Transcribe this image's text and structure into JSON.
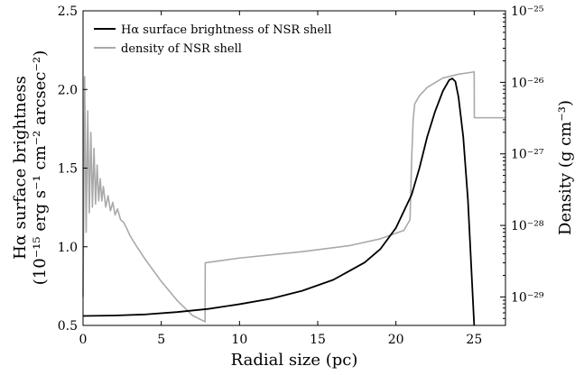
{
  "chart_data": {
    "type": "line",
    "xlabel": "Radial size (pc)",
    "xlim": [
      0,
      27
    ],
    "x_ticks": [
      0,
      5,
      10,
      15,
      20,
      25
    ],
    "x_tick_labels": [
      "0",
      "5",
      "10",
      "15",
      "20",
      "25"
    ],
    "y_left": {
      "label_line1": "Hα surface brightness",
      "label_line2": "(10⁻¹⁵ erg s⁻¹ cm⁻² arcsec⁻²)",
      "lim": [
        0.5,
        2.5
      ],
      "ticks": [
        0.5,
        1.0,
        1.5,
        2.0,
        2.5
      ],
      "tick_labels": [
        "0.5",
        "1.0",
        "1.5",
        "2.0",
        "2.5"
      ]
    },
    "y_right": {
      "label": "Density (g cm⁻³)",
      "scale": "log",
      "lim": [
        4e-30,
        1e-25
      ],
      "ticks": [
        1e-29,
        1e-28,
        1e-27,
        1e-26,
        1e-25
      ],
      "tick_labels": [
        "10⁻²⁹",
        "10⁻²⁸",
        "10⁻²⁷",
        "10⁻²⁶",
        "10⁻²⁵"
      ]
    },
    "grid": false,
    "legend_position": "top-left",
    "series": [
      {
        "name": "Hα surface brightness of NSR shell",
        "axis": "left",
        "color": "#000000",
        "x": [
          0.0,
          2.0,
          4.0,
          6.0,
          8.0,
          10.0,
          12.0,
          14.0,
          16.0,
          18.0,
          19.0,
          20.0,
          21.0,
          21.5,
          22.0,
          22.5,
          23.0,
          23.4,
          23.6,
          23.8,
          24.0,
          24.3,
          24.6,
          24.9,
          25.0
        ],
        "values": [
          0.56,
          0.563,
          0.57,
          0.585,
          0.605,
          0.635,
          0.67,
          0.72,
          0.79,
          0.9,
          0.985,
          1.12,
          1.33,
          1.5,
          1.7,
          1.86,
          1.99,
          2.06,
          2.07,
          2.05,
          1.95,
          1.7,
          1.3,
          0.7,
          0.5
        ]
      },
      {
        "name": "density of NSR shell",
        "axis": "right",
        "color": "#a9a9a9",
        "x": [
          0.0,
          0.1,
          0.2,
          0.3,
          0.4,
          0.5,
          0.6,
          0.7,
          0.8,
          0.9,
          1.0,
          1.1,
          1.2,
          1.3,
          1.45,
          1.6,
          1.75,
          1.9,
          2.05,
          2.2,
          2.4,
          2.6,
          2.8,
          3.0,
          3.5,
          4.0,
          5.0,
          6.0,
          7.0,
          7.8,
          7.81,
          10.0,
          14.0,
          17.0,
          19.0,
          20.5,
          20.9,
          21.0,
          21.1,
          21.2,
          21.5,
          22.0,
          23.0,
          24.0,
          25.0,
          25.01,
          27.0
        ],
        "values": [
          1e-29,
          1.2e-26,
          8e-29,
          4e-27,
          1.5e-28,
          2e-27,
          1.8e-28,
          1.2e-27,
          2e-28,
          7e-28,
          2.2e-28,
          4.5e-28,
          2.2e-28,
          3.5e-28,
          1.8e-28,
          2.6e-28,
          1.6e-28,
          2.1e-28,
          1.4e-28,
          1.7e-28,
          1.2e-28,
          1.1e-28,
          9e-29,
          7.2e-29,
          4.8e-29,
          3.3e-29,
          1.65e-29,
          9e-30,
          5.5e-30,
          4.5e-30,
          3e-29,
          3.5e-29,
          4.3e-29,
          5.2e-29,
          6.5e-29,
          8.5e-29,
          1.2e-28,
          8e-28,
          3e-27,
          5e-27,
          6.5e-27,
          8.5e-27,
          1.15e-26,
          1.3e-26,
          1.4e-26,
          3.2e-27,
          3.2e-27
        ]
      }
    ]
  }
}
